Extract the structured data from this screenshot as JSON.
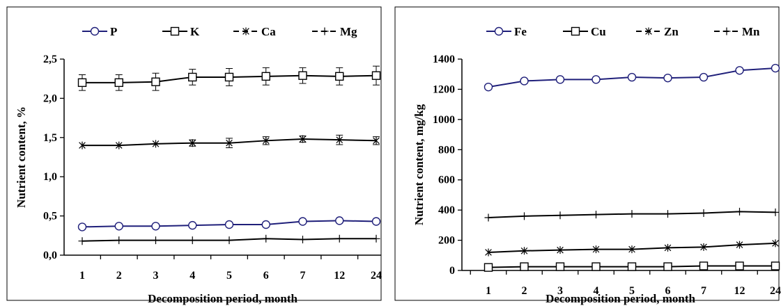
{
  "chart_data": [
    {
      "type": "line",
      "xlabel": "Decomposition period, month",
      "ylabel": "Nutrient content, %",
      "categories": [
        "1",
        "2",
        "3",
        "4",
        "5",
        "6",
        "7",
        "12",
        "24"
      ],
      "ylim": [
        0,
        2.5
      ],
      "yticks": [
        "0,0",
        "0,5",
        "1,0",
        "1,5",
        "2,0",
        "2,5"
      ],
      "grid": false,
      "legend_position": "top",
      "series": [
        {
          "name": "P",
          "marker": "circle",
          "color": "#1f1f7a",
          "values": [
            0.36,
            0.37,
            0.37,
            0.38,
            0.39,
            0.39,
            0.43,
            0.44,
            0.43
          ]
        },
        {
          "name": "K",
          "marker": "square",
          "color": "#000000",
          "values": [
            2.2,
            2.2,
            2.21,
            2.27,
            2.27,
            2.28,
            2.29,
            2.28,
            2.29
          ],
          "error": [
            0.1,
            0.1,
            0.11,
            0.1,
            0.11,
            0.11,
            0.1,
            0.11,
            0.12
          ]
        },
        {
          "name": "Ca",
          "marker": "asterisk",
          "color": "#000000",
          "values": [
            1.4,
            1.4,
            1.42,
            1.43,
            1.43,
            1.46,
            1.48,
            1.47,
            1.46
          ],
          "error": [
            0,
            0,
            0,
            0.04,
            0.06,
            0.05,
            0.04,
            0.06,
            0.05
          ]
        },
        {
          "name": "Mg",
          "marker": "plus",
          "color": "#000000",
          "values": [
            0.18,
            0.19,
            0.19,
            0.19,
            0.19,
            0.21,
            0.2,
            0.21,
            0.21
          ]
        }
      ]
    },
    {
      "type": "line",
      "xlabel": "Decomposition period, month",
      "ylabel": "Nutrient content, mg/kg",
      "categories": [
        "1",
        "2",
        "3",
        "4",
        "5",
        "6",
        "7",
        "12",
        "24"
      ],
      "ylim": [
        0,
        1400
      ],
      "yticks": [
        "0",
        "200",
        "400",
        "600",
        "800",
        "1000",
        "1200",
        "1400"
      ],
      "grid": false,
      "legend_position": "top",
      "series": [
        {
          "name": "Fe",
          "marker": "circle",
          "color": "#1f1f7a",
          "values": [
            1215,
            1255,
            1265,
            1265,
            1280,
            1275,
            1280,
            1325,
            1340
          ]
        },
        {
          "name": "Cu",
          "marker": "square",
          "color": "#000000",
          "values": [
            20,
            25,
            25,
            25,
            25,
            25,
            30,
            30,
            30
          ]
        },
        {
          "name": "Zn",
          "marker": "asterisk",
          "color": "#000000",
          "values": [
            120,
            130,
            135,
            140,
            140,
            150,
            155,
            170,
            180
          ]
        },
        {
          "name": "Mn",
          "marker": "plus",
          "color": "#000000",
          "values": [
            350,
            360,
            365,
            370,
            375,
            375,
            380,
            390,
            385
          ]
        }
      ]
    }
  ]
}
